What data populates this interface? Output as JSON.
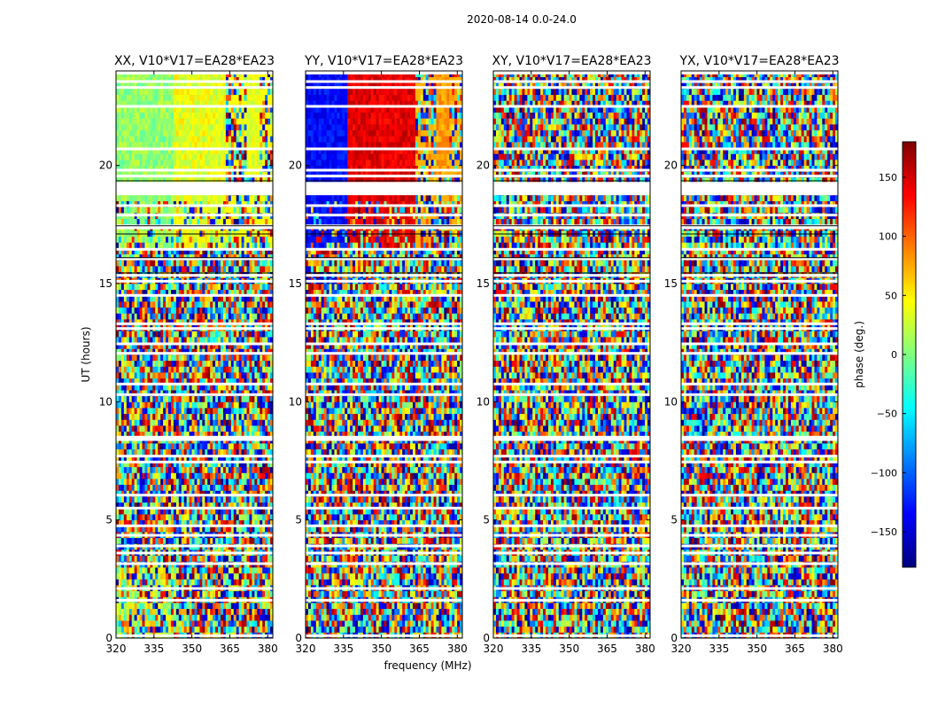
{
  "chart_data": {
    "type": "heatmap",
    "title": "2020-08-14 0.0-24.0",
    "xlabel": "frequency (MHz)",
    "ylabel": "UT (hours)",
    "xlim": [
      320,
      382
    ],
    "ylim": [
      0,
      24
    ],
    "xticks": [
      320,
      335,
      350,
      365,
      380
    ],
    "yticks": [
      0,
      5,
      10,
      15,
      20
    ],
    "panels": [
      {
        "title": "XX, V10*V17=EA28*EA23",
        "pattern": "xx"
      },
      {
        "title": "YY, V10*V17=EA28*EA23",
        "pattern": "yy"
      },
      {
        "title": "XY, V10*V17=EA28*EA23",
        "pattern": "noise"
      },
      {
        "title": "YX, V10*V17=EA28*EA23",
        "pattern": "noise"
      }
    ],
    "colorbar": {
      "label": "phase (deg.)",
      "range": [
        -180,
        180
      ],
      "ticks": [
        150,
        100,
        50,
        0,
        -50,
        -100,
        -150
      ],
      "tick_labels": [
        "150",
        "100",
        "50",
        "0",
        "−50",
        "−100",
        "−150"
      ],
      "colormap": "jet",
      "colors": [
        "#00007f",
        "#0000ff",
        "#007fff",
        "#00ffff",
        "#7fff7f",
        "#ffff00",
        "#ff7f00",
        "#ff0000",
        "#7f0000"
      ]
    },
    "flagged_ut_hours": [
      0.1,
      1.6,
      2.1,
      3.15,
      3.6,
      3.9,
      4.35,
      4.75,
      5.5,
      6.05,
      7.45,
      7.7,
      8.4,
      8.5,
      10.3,
      10.75,
      12.05,
      12.45,
      13.1,
      13.3,
      14.5,
      15.1,
      15.35,
      16.05,
      16.45,
      17.9,
      18.3,
      18.8,
      19.55,
      19.8,
      20.7,
      22.5,
      23.3,
      23.55
    ]
  }
}
